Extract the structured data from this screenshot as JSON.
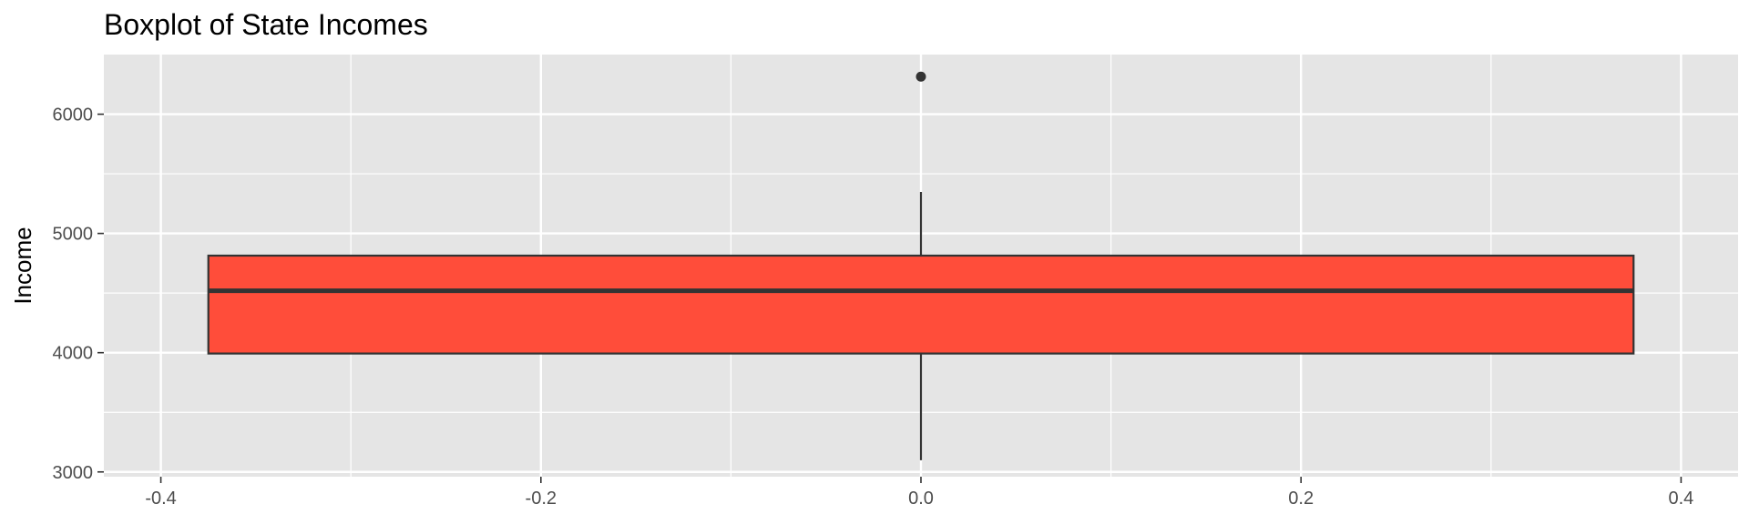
{
  "chart_data": {
    "type": "boxplot",
    "title": "Boxplot of State Incomes",
    "xlabel": "",
    "ylabel": "Income",
    "xlim": [
      -0.43,
      0.43
    ],
    "ylim": [
      2960,
      6500
    ],
    "x_ticks": [
      -0.4,
      -0.2,
      0.0,
      0.2,
      0.4
    ],
    "x_tick_labels": [
      "-0.4",
      "-0.2",
      "0.0",
      "0.2",
      "0.4"
    ],
    "y_ticks": [
      3000,
      4000,
      5000,
      6000
    ],
    "y_tick_labels": [
      "3000",
      "4000",
      "5000",
      "6000"
    ],
    "grid": true,
    "legend": "none",
    "box": {
      "x_center": 0.0,
      "x_left": -0.375,
      "x_right": 0.375,
      "whisker_low": 3098,
      "q1": 3993,
      "median": 4519,
      "q3": 4814,
      "whisker_high": 5348,
      "outliers": [
        6315
      ]
    },
    "colors": {
      "panel_background": "#E5E5E5",
      "grid_line": "#FFFFFF",
      "box_fill": "#FF4D3A",
      "box_outline": "#333333",
      "outlier": "#333333",
      "tick_text": "#4D4D4D",
      "title_text": "#000000"
    }
  }
}
